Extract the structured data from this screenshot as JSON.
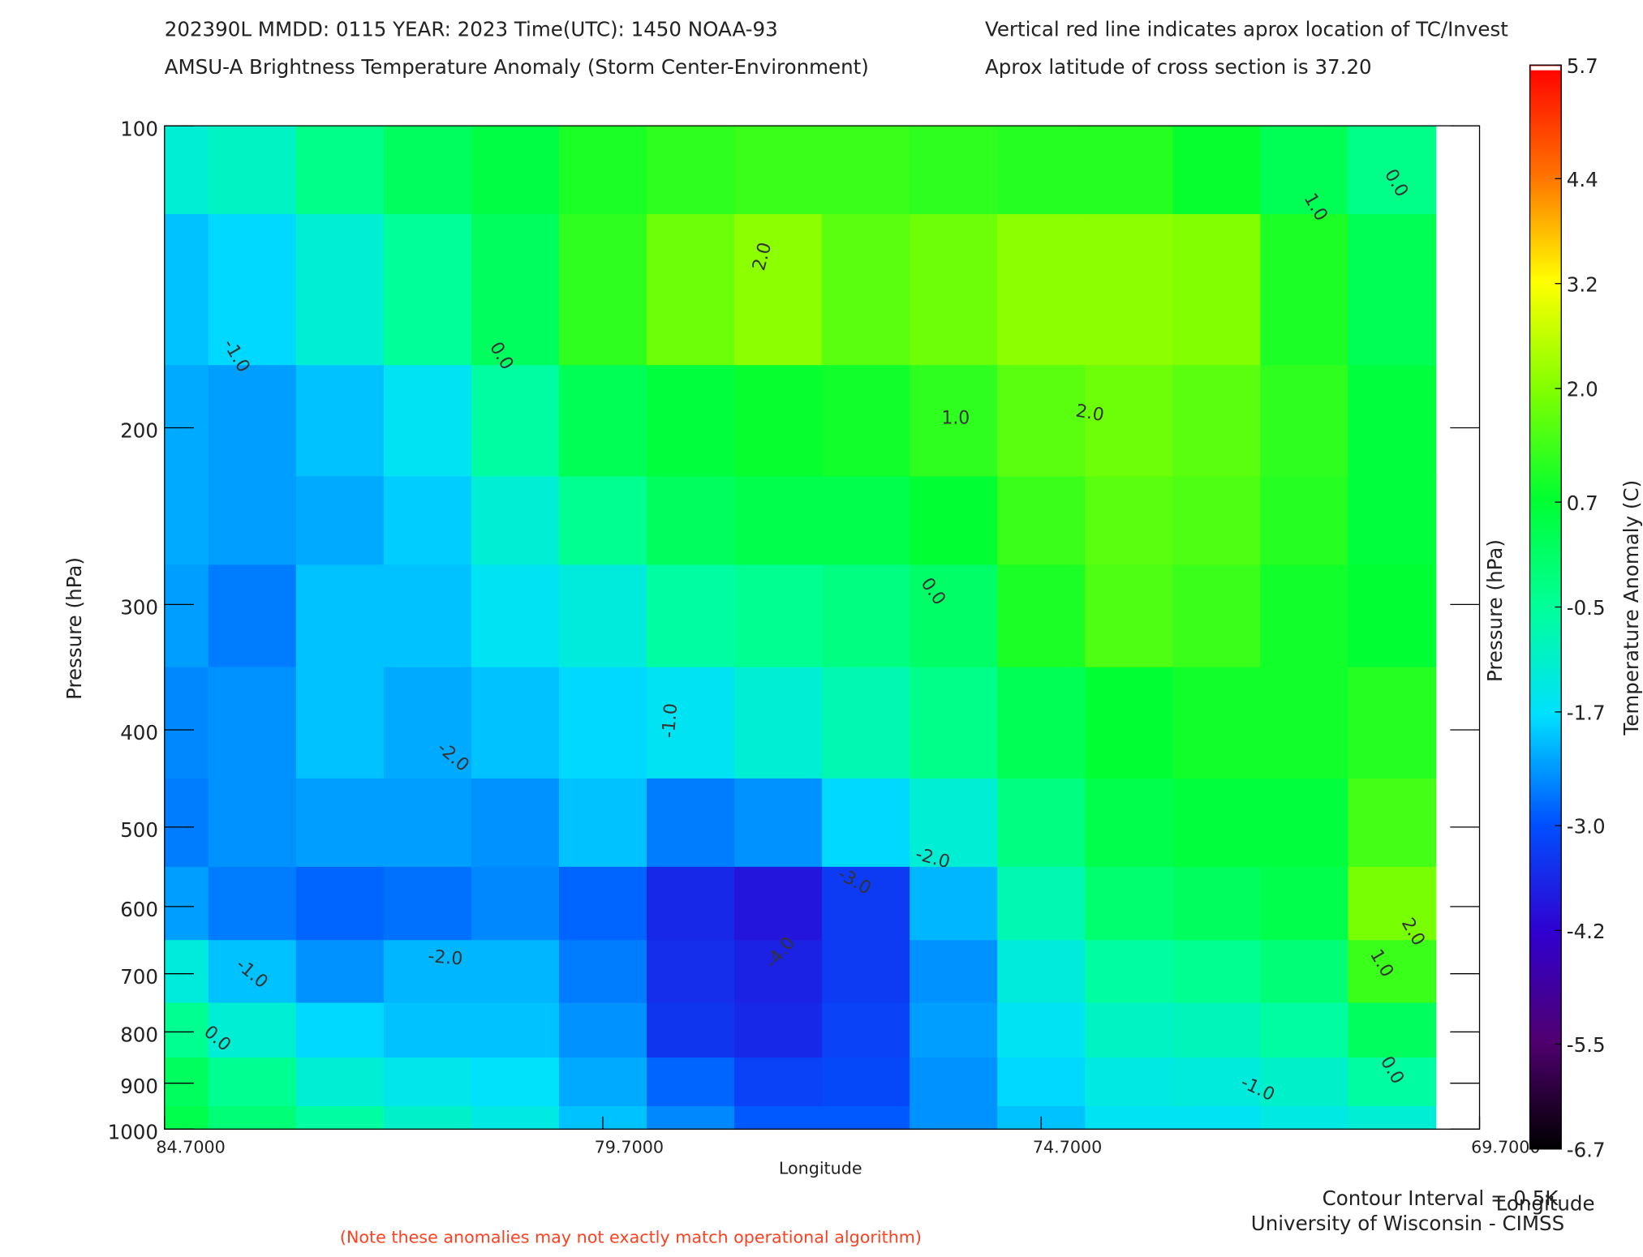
{
  "chart_data": {
    "type": "contour",
    "header": [
      "202390L  MMDD: 0115 YEAR: 2023 Time(UTC): 1450 NOAA-93",
      "AMSU-A Brightness Temperature Anomaly (Storm Center-Environment)"
    ],
    "notes": [
      "Vertical red line indicates aprox location of TC/Invest",
      "Aprox latitude of cross section is 37.20"
    ],
    "xlabel": "Longitude",
    "ylabel": "Pressure (hPa)",
    "y2label": "Pressure (hPa)",
    "xlabel2": "Longitude",
    "colorbar_label": "Temperature Anomaly (C)",
    "contour_interval": "Contour Interval = 0.5K",
    "credit": "University of Wisconsin - CIMSS",
    "disclaimer": "(Note these anomalies may not exactly match operational algorithm)",
    "xlim": [
      84.7,
      69.7
    ],
    "xticks": [
      {
        "value": 84.7,
        "label": "84.7000"
      },
      {
        "value": 79.7,
        "label": "79.7000"
      },
      {
        "value": 74.7,
        "label": "74.7000"
      },
      {
        "value": 69.7,
        "label": "69.7000"
      }
    ],
    "ylim": [
      100,
      1000
    ],
    "ylog": true,
    "yticks": [
      100,
      200,
      300,
      400,
      500,
      600,
      700,
      800,
      900,
      1000
    ],
    "x": [
      84.7,
      83.7,
      82.7,
      81.7,
      80.7,
      79.7,
      78.7,
      77.7,
      76.7,
      75.7,
      74.7,
      73.7,
      72.7,
      71.7,
      70.7
    ],
    "y": [
      100,
      150,
      200,
      250,
      300,
      400,
      500,
      600,
      700,
      800,
      900,
      1000
    ],
    "z": [
      [
        -1.2,
        -1.0,
        -0.3,
        0.2,
        0.5,
        1.0,
        1.2,
        1.3,
        1.3,
        1.2,
        1.1,
        1.1,
        0.8,
        0.3,
        -0.3
      ],
      [
        -2.0,
        -1.8,
        -1.2,
        -0.5,
        0.2,
        1.2,
        1.8,
        2.1,
        1.6,
        1.8,
        2.1,
        2.1,
        2.0,
        1.0,
        0.3
      ],
      [
        -2.2,
        -2.3,
        -2.0,
        -1.6,
        -0.6,
        0.3,
        0.6,
        0.8,
        0.9,
        1.2,
        1.6,
        1.8,
        1.6,
        1.2,
        0.6
      ],
      [
        -2.2,
        -2.3,
        -2.2,
        -1.9,
        -1.2,
        -0.4,
        0.2,
        0.4,
        0.4,
        0.7,
        1.3,
        1.6,
        1.5,
        1.1,
        0.6
      ],
      [
        -2.3,
        -2.6,
        -2.0,
        -2.0,
        -1.6,
        -1.3,
        -0.6,
        -0.4,
        -0.2,
        0.1,
        1.0,
        1.5,
        1.3,
        0.9,
        0.7
      ],
      [
        -2.5,
        -2.4,
        -2.0,
        -2.2,
        -2.0,
        -1.8,
        -1.6,
        -1.2,
        -0.8,
        -0.3,
        0.3,
        0.7,
        0.9,
        0.9,
        1.1
      ],
      [
        -2.6,
        -2.4,
        -2.3,
        -2.3,
        -2.4,
        -2.0,
        -2.6,
        -2.4,
        -1.8,
        -1.2,
        -0.2,
        0.4,
        0.6,
        0.6,
        1.4
      ],
      [
        -2.3,
        -2.6,
        -2.8,
        -2.7,
        -2.5,
        -2.8,
        -3.6,
        -3.9,
        -3.3,
        -2.1,
        -0.8,
        0.0,
        0.2,
        0.4,
        1.9
      ],
      [
        -1.3,
        -2.0,
        -2.4,
        -2.1,
        -2.1,
        -2.6,
        -3.5,
        -3.7,
        -3.3,
        -2.4,
        -1.3,
        -0.6,
        -0.4,
        -0.1,
        1.3
      ],
      [
        -0.4,
        -1.2,
        -1.8,
        -2.0,
        -2.0,
        -2.4,
        -3.4,
        -3.6,
        -3.2,
        -2.3,
        -1.6,
        -1.0,
        -0.9,
        -0.6,
        0.2
      ],
      [
        0.2,
        -0.4,
        -1.2,
        -1.5,
        -1.7,
        -2.2,
        -2.8,
        -3.2,
        -3.1,
        -2.4,
        -1.8,
        -1.4,
        -1.3,
        -1.1,
        -0.6
      ],
      [
        0.4,
        -0.1,
        -0.6,
        -1.1,
        -1.4,
        -2.0,
        -2.5,
        -2.9,
        -2.9,
        -2.4,
        -2.0,
        -1.6,
        -1.6,
        -1.4,
        -1.2
      ]
    ],
    "clim": [
      -6.7,
      5.7
    ],
    "cticks": [
      5.7,
      4.4,
      3.2,
      {
        "value": 2,
        "label": "2.0"
      },
      0.7,
      -0.5,
      -1.7,
      {
        "value": -3,
        "label": "-3.0"
      },
      -4.2,
      -5.5,
      -6.7
    ],
    "colormap": [
      "#000000",
      "#500070",
      "#3000d0",
      "#0050ff",
      "#00e0ff",
      "#00ff99",
      "#00ff30",
      "#80ff00",
      "#ffff00",
      "#ff7000",
      "#ff0000"
    ],
    "contour_labels": [
      "-1.0",
      "0.0",
      "2.0",
      "1.0",
      "2.0",
      "0.0",
      "1.0",
      "0.0",
      "-1.0",
      "-2.0",
      "-2.0",
      "-3.0",
      "-4.0",
      "-2.0",
      "-1.0",
      "0.0",
      "1.0",
      "2.0",
      "0.0",
      "-1.0"
    ]
  }
}
